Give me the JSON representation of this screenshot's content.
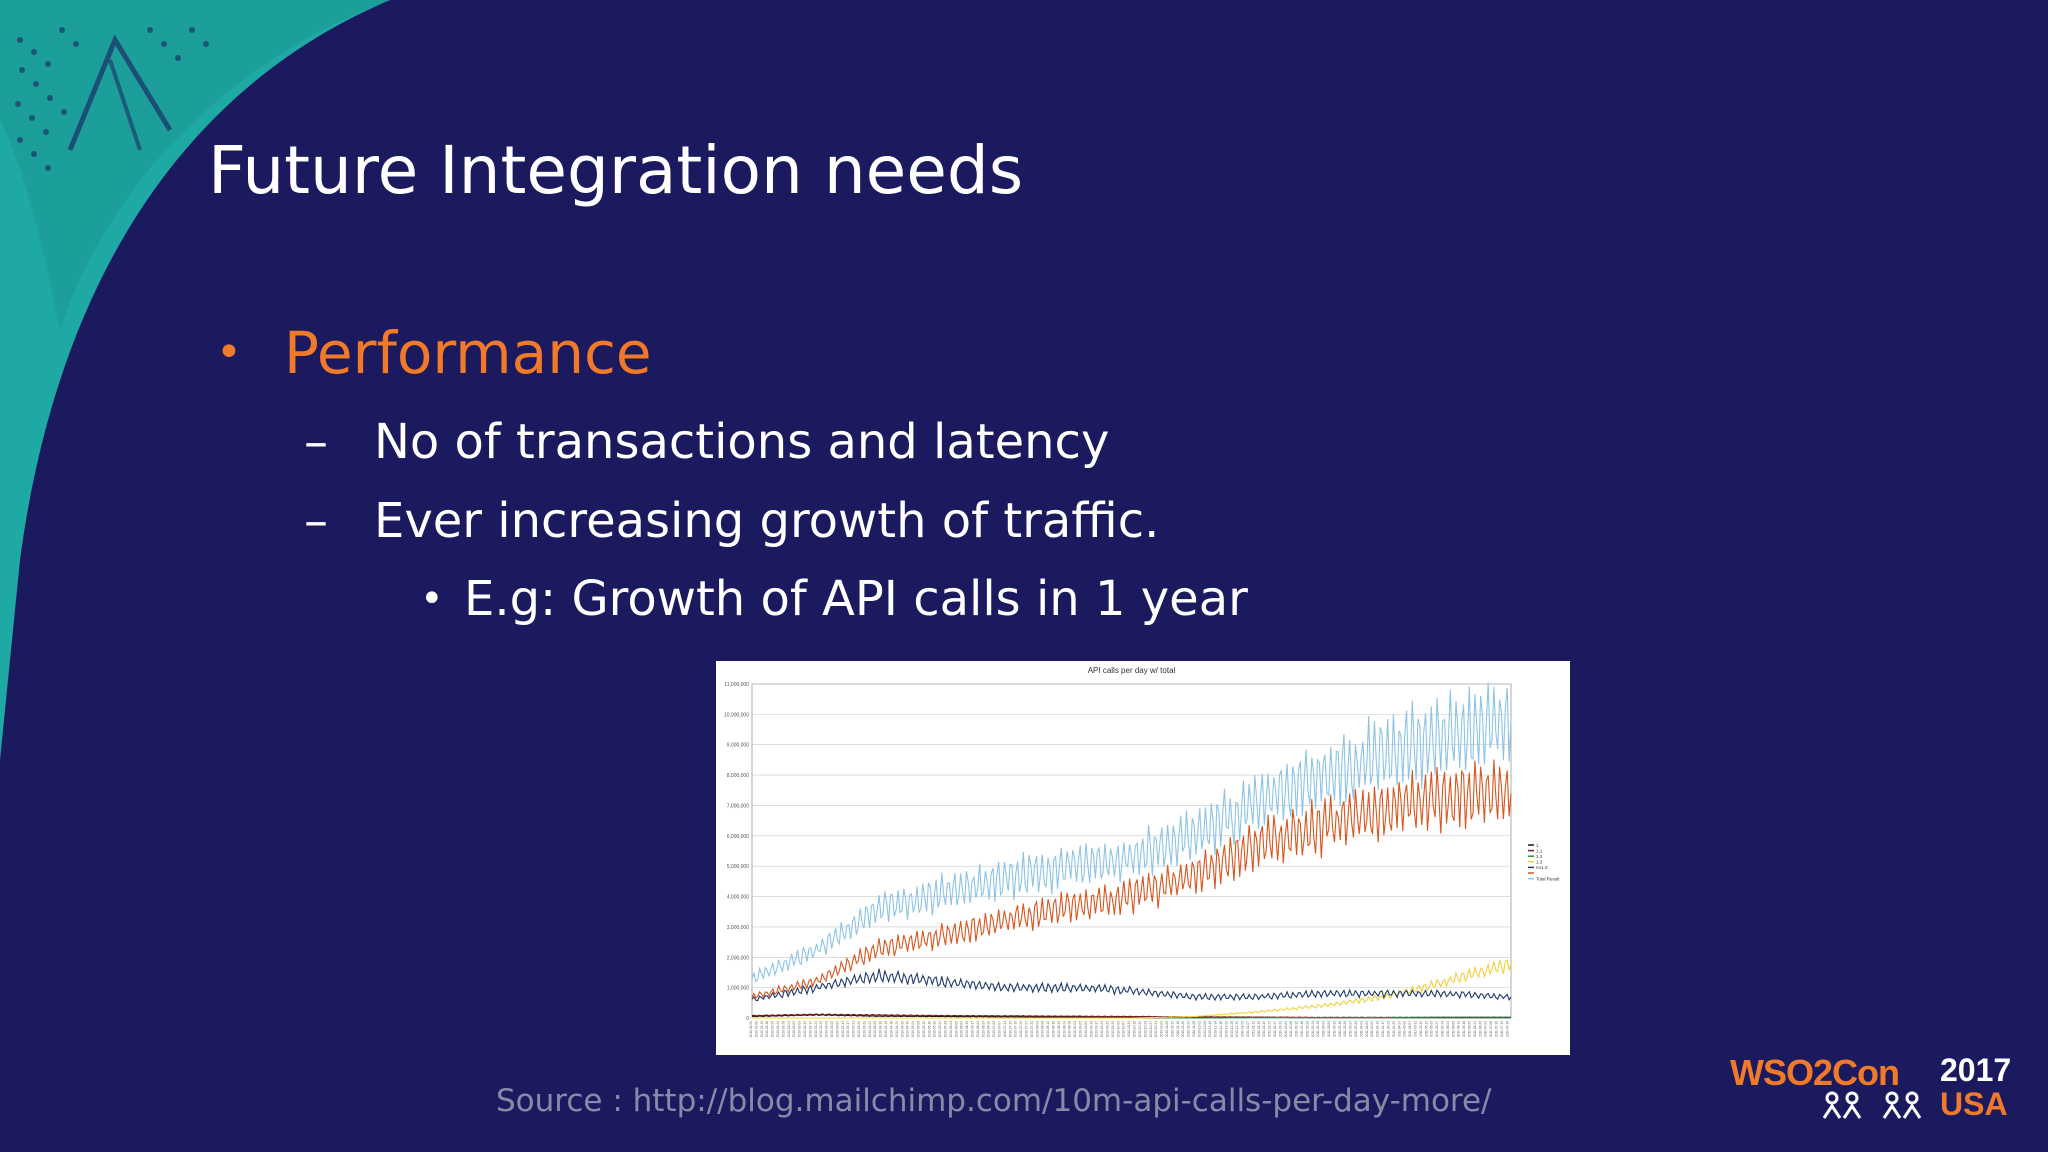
{
  "slide": {
    "title": "Future Integration needs",
    "bullet": "Performance",
    "bullet_marker": "•",
    "dash_marker": "–",
    "sub_bullet_marker": "•",
    "sub_items": [
      "No of transactions and latency",
      "Ever increasing growth of traffic."
    ],
    "sub_sub_item": "E.g: Growth of API calls in 1 year",
    "source": "Source : http://blog.mailchimp.com/10m-api-calls-per-day-more/"
  },
  "logo": {
    "brand": "WSO2Con",
    "year": "2017",
    "location": "USA"
  },
  "colors": {
    "background": "#1c1a5e",
    "teal": "#1ea9a4",
    "accent_orange": "#f07a2a",
    "text_white": "#ffffff",
    "source_gray": "#8a89a8"
  },
  "chart_data": {
    "type": "line",
    "title": "API calls per day w/ total",
    "ylim": [
      0,
      11000000
    ],
    "yticks": [
      "0",
      "1,000,000",
      "2,000,000",
      "3,000,000",
      "4,000,000",
      "5,000,000",
      "6,000,000",
      "7,000,000",
      "8,000,000",
      "9,000,000",
      "10,000,000",
      "11,000,000"
    ],
    "x_start": "2010-01-04",
    "x_end": "2011-07-20",
    "legend_placement": "right",
    "grid": true,
    "series": [
      {
        "name": "1",
        "color": "#1a1a1a",
        "values": [
          50000,
          100000,
          60000,
          50000,
          40000,
          30000,
          20000,
          20000,
          20000,
          10000,
          10000,
          10000,
          10000
        ]
      },
      {
        "name": "1.1",
        "color": "#7a1a1a",
        "values": [
          80000,
          120000,
          100000,
          80000,
          70000,
          60000,
          50000,
          40000,
          30000,
          20000,
          20000,
          20000,
          20000
        ]
      },
      {
        "name": "1.2",
        "color": "#2e8b57",
        "values": [
          0,
          0,
          0,
          0,
          0,
          0,
          0,
          0,
          10000,
          20000,
          20000,
          30000,
          30000
        ]
      },
      {
        "name": "1.3",
        "color": "#f2d13a",
        "values": [
          0,
          0,
          0,
          0,
          0,
          0,
          0,
          50000,
          200000,
          400000,
          700000,
          1200000,
          1800000
        ]
      },
      {
        "name": "mr1.0",
        "color": "#1f3b6e",
        "values": [
          600000,
          1000000,
          1400000,
          1200000,
          1000000,
          1000000,
          900000,
          700000,
          700000,
          800000,
          800000,
          800000,
          700000
        ]
      },
      {
        "name": "",
        "color": "#d8561f",
        "values": [
          700000,
          1200000,
          2300000,
          2700000,
          3200000,
          3700000,
          4000000,
          4700000,
          5700000,
          6300000,
          6900000,
          7300000,
          7400000
        ]
      },
      {
        "name": "Total Result",
        "color": "#8ec3e6",
        "values": [
          1300000,
          2200000,
          3600000,
          4100000,
          4600000,
          5000000,
          5300000,
          6000000,
          7100000,
          8000000,
          8700000,
          9300000,
          9800000
        ]
      }
    ]
  }
}
